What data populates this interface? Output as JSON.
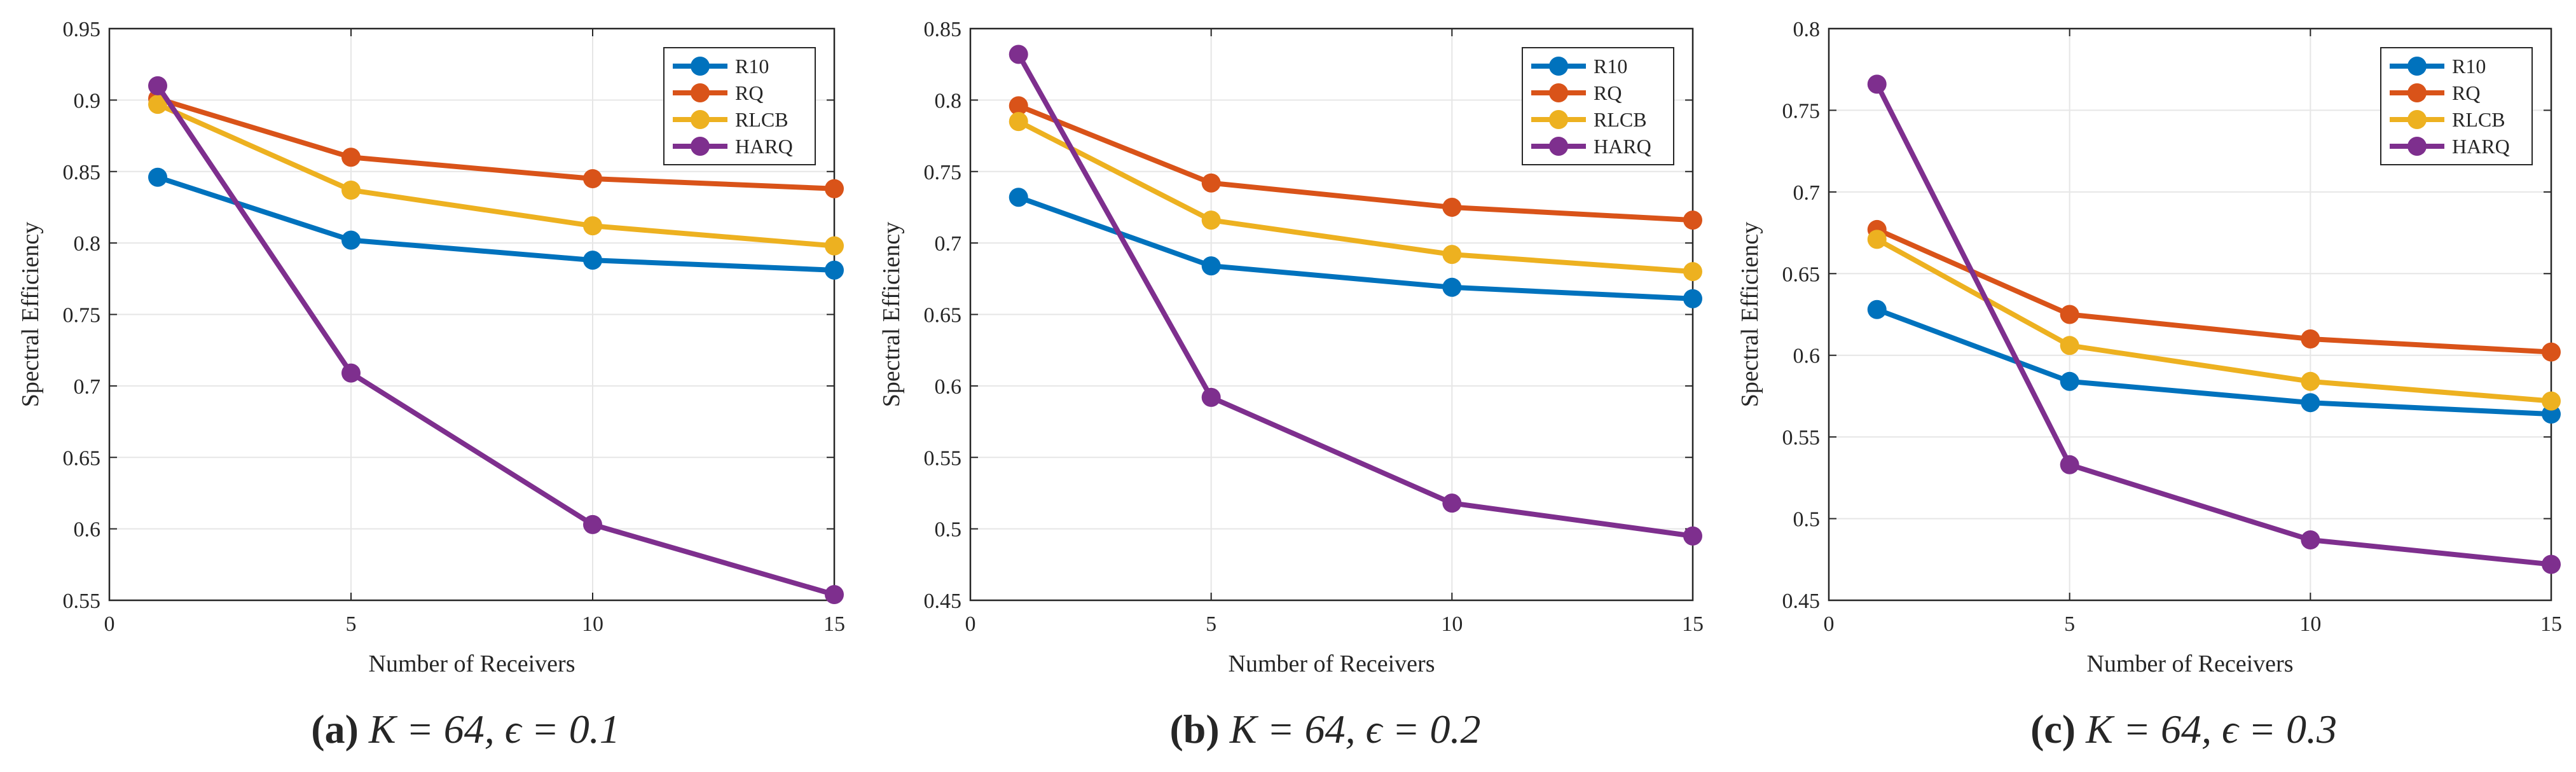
{
  "colors": {
    "R10": "#0072BD",
    "RQ": "#D95319",
    "RLCB": "#EDB120",
    "HARQ": "#7E2F8E",
    "grid": "#e6e6e6",
    "axis": "#262626"
  },
  "chart_data": [
    {
      "type": "line",
      "caption": {
        "label": "(a)",
        "text": "K = 64, ϵ = 0.1"
      },
      "xlabel": "Number of Receivers",
      "ylabel": "Spectral Efficiency",
      "xlim": [
        0,
        15
      ],
      "ylim": [
        0.55,
        0.95
      ],
      "xticks": [
        0,
        5,
        10,
        15
      ],
      "yticks": [
        0.55,
        0.6,
        0.65,
        0.7,
        0.75,
        0.8,
        0.85,
        0.9,
        0.95
      ],
      "ytick_labels": [
        "0.55",
        "0.6",
        "0.65",
        "0.7",
        "0.75",
        "0.8",
        "0.85",
        "0.9",
        "0.95"
      ],
      "grid": true,
      "legend_position": "top-right",
      "x": [
        1,
        5,
        10,
        15
      ],
      "series": [
        {
          "name": "R10",
          "values": [
            0.846,
            0.802,
            0.788,
            0.781
          ]
        },
        {
          "name": "RQ",
          "values": [
            0.901,
            0.86,
            0.845,
            0.838
          ]
        },
        {
          "name": "RLCB",
          "values": [
            0.897,
            0.837,
            0.812,
            0.798
          ]
        },
        {
          "name": "HARQ",
          "values": [
            0.91,
            0.709,
            0.603,
            0.554
          ]
        }
      ]
    },
    {
      "type": "line",
      "caption": {
        "label": "(b)",
        "text": "K = 64, ϵ = 0.2"
      },
      "xlabel": "Number of Receivers",
      "ylabel": "Spectral Efficiency",
      "xlim": [
        0,
        15
      ],
      "ylim": [
        0.45,
        0.85
      ],
      "xticks": [
        0,
        5,
        10,
        15
      ],
      "yticks": [
        0.45,
        0.5,
        0.55,
        0.6,
        0.65,
        0.7,
        0.75,
        0.8,
        0.85
      ],
      "ytick_labels": [
        "0.45",
        "0.5",
        "0.55",
        "0.6",
        "0.65",
        "0.7",
        "0.75",
        "0.8",
        "0.85"
      ],
      "grid": true,
      "legend_position": "top-right",
      "x": [
        1,
        5,
        10,
        15
      ],
      "series": [
        {
          "name": "R10",
          "values": [
            0.732,
            0.684,
            0.669,
            0.661
          ]
        },
        {
          "name": "RQ",
          "values": [
            0.796,
            0.742,
            0.725,
            0.716
          ]
        },
        {
          "name": "RLCB",
          "values": [
            0.785,
            0.716,
            0.692,
            0.68
          ]
        },
        {
          "name": "HARQ",
          "values": [
            0.832,
            0.592,
            0.518,
            0.495
          ]
        }
      ]
    },
    {
      "type": "line",
      "caption": {
        "label": "(c)",
        "text": "K = 64, ϵ = 0.3"
      },
      "xlabel": "Number of Receivers",
      "ylabel": "Spectral Efficiency",
      "xlim": [
        0,
        15
      ],
      "ylim": [
        0.45,
        0.8
      ],
      "xticks": [
        0,
        5,
        10,
        15
      ],
      "yticks": [
        0.45,
        0.5,
        0.55,
        0.6,
        0.65,
        0.7,
        0.75,
        0.8
      ],
      "ytick_labels": [
        "0.45",
        "0.5",
        "0.55",
        "0.6",
        "0.65",
        "0.7",
        "0.75",
        "0.8"
      ],
      "grid": true,
      "legend_position": "top-right",
      "x": [
        1,
        5,
        10,
        15
      ],
      "series": [
        {
          "name": "R10",
          "values": [
            0.628,
            0.584,
            0.571,
            0.564
          ]
        },
        {
          "name": "RQ",
          "values": [
            0.677,
            0.625,
            0.61,
            0.602
          ]
        },
        {
          "name": "RLCB",
          "values": [
            0.671,
            0.606,
            0.584,
            0.572
          ]
        },
        {
          "name": "HARQ",
          "values": [
            0.766,
            0.533,
            0.487,
            0.472
          ]
        }
      ]
    }
  ]
}
